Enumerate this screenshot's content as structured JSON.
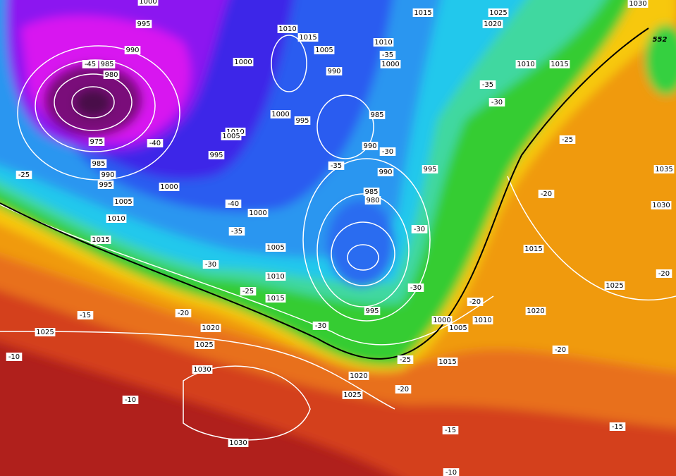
{
  "isobar_labels": [
    "1000",
    "995",
    "990",
    "985",
    "980",
    "975",
    "985",
    "990",
    "995",
    "1000",
    "1005",
    "1010",
    "1015",
    "1000",
    "1010",
    "1015",
    "1005",
    "990",
    "1000",
    "995",
    "1010",
    "1005",
    "995",
    "1010",
    "1000",
    "985",
    "990",
    "990",
    "995",
    "985",
    "980",
    "1000",
    "1005",
    "1010",
    "1015",
    "995",
    "1020",
    "1025",
    "1025",
    "1030",
    "1030",
    "1020",
    "1025",
    "1000",
    "1005",
    "1010",
    "1015",
    "1015",
    "1025",
    "1020",
    "1030",
    "1010",
    "1015",
    "1015",
    "1020",
    "1025",
    "1030",
    "1035"
  ],
  "thickness_labels": [
    "-45",
    "-40",
    "-25",
    "-40",
    "-35",
    "-30",
    "-35",
    "-30",
    "-35",
    "-35",
    "-30",
    "-25",
    "-20",
    "-30",
    "-30",
    "-25",
    "-20",
    "-15",
    "-30",
    "-25",
    "-20",
    "-20",
    "-20",
    "-10",
    "-10",
    "-15",
    "-15",
    "-20",
    "-10"
  ],
  "height_label": "552"
}
